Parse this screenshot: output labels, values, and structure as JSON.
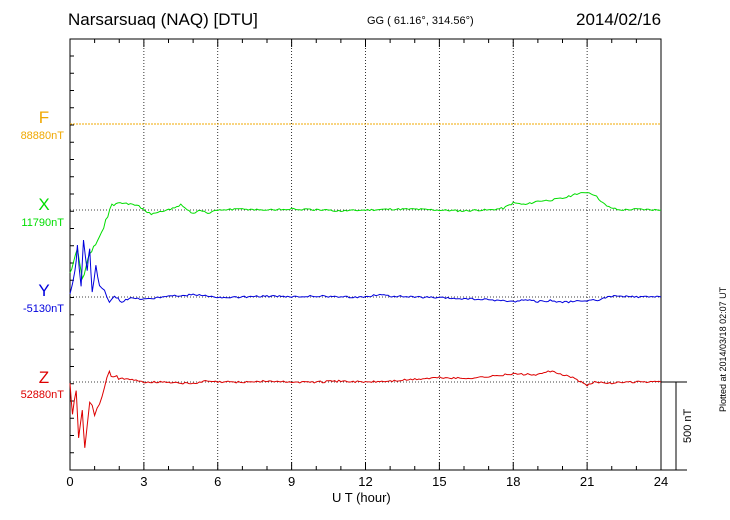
{
  "header": {
    "station": "Narsarsuaq (NAQ)  [DTU]",
    "coords": "GG ( 61.16°, 314.56°)",
    "date": "2014/02/16"
  },
  "plotted_note": "Plotted at 2014/03/18 02:07 UT",
  "colors": {
    "F": "#f0a800",
    "X": "#00dd00",
    "Y": "#0000dd",
    "Z": "#dd0000"
  },
  "chart_data": {
    "type": "line",
    "xlabel": "U T (hour)",
    "xlim": [
      0,
      24
    ],
    "x_ticks": [
      "0",
      "3",
      "6",
      "9",
      "12",
      "15",
      "18",
      "21",
      "24"
    ],
    "scale_bar": "500 nT",
    "grid": "vertical dotted at every 3 h",
    "series": [
      {
        "name": "F",
        "baseline": "88880nT",
        "values": []
      },
      {
        "name": "X",
        "baseline": "11790nT",
        "x": [
          0,
          0.3,
          0.5,
          0.8,
          1.2,
          1.7,
          2.2,
          2.8,
          3.3,
          4,
          4.5,
          5,
          5.3,
          5.6,
          6,
          7,
          8,
          9,
          10,
          11,
          12,
          13,
          14,
          15,
          16,
          16.5,
          17,
          17.6,
          18,
          18.5,
          19,
          19.5,
          20,
          20.5,
          21,
          21.3,
          21.8,
          22.3,
          23,
          24
        ],
        "values": [
          -350,
          -200,
          -380,
          -250,
          -150,
          30,
          40,
          20,
          -25,
          0,
          30,
          -20,
          0,
          -20,
          0,
          5,
          0,
          5,
          0,
          -5,
          0,
          5,
          5,
          0,
          -5,
          0,
          0,
          10,
          40,
          30,
          50,
          55,
          65,
          85,
          100,
          85,
          20,
          0,
          5,
          0
        ]
      },
      {
        "name": "Y",
        "baseline": "-5130nT",
        "x": [
          0,
          0.2,
          0.3,
          0.45,
          0.55,
          0.7,
          0.8,
          0.9,
          1.05,
          1.2,
          1.4,
          1.6,
          1.8,
          2.1,
          2.5,
          3,
          3.5,
          4,
          4.5,
          5,
          5.5,
          6,
          7,
          8,
          9,
          10,
          11,
          12,
          12.5,
          13,
          14,
          15,
          16,
          17,
          18,
          18.5,
          19,
          19.5,
          20,
          20.5,
          21,
          21.5,
          22,
          23,
          24
        ],
        "values": [
          20,
          150,
          280,
          50,
          320,
          150,
          270,
          30,
          180,
          60,
          30,
          -20,
          0,
          -25,
          -5,
          -10,
          -5,
          10,
          5,
          15,
          10,
          -5,
          0,
          5,
          0,
          5,
          0,
          0,
          15,
          5,
          0,
          -5,
          -10,
          -15,
          -25,
          -15,
          -25,
          -20,
          -30,
          -25,
          -20,
          -15,
          5,
          0,
          0
        ]
      },
      {
        "name": "Z",
        "baseline": "52880nT",
        "x": [
          0,
          0.1,
          0.25,
          0.35,
          0.5,
          0.6,
          0.8,
          1,
          1.2,
          1.4,
          1.6,
          1.9,
          2.2,
          2.6,
          3,
          4,
          5,
          5.5,
          6,
          7,
          8,
          9,
          10,
          11,
          12,
          13,
          14,
          15,
          16,
          17,
          18,
          19,
          19.5,
          20,
          20.5,
          21,
          21.3,
          22,
          23,
          24
        ],
        "values": [
          0,
          -180,
          -50,
          -300,
          -150,
          -380,
          -100,
          -180,
          -120,
          -30,
          50,
          30,
          15,
          10,
          0,
          0,
          -10,
          5,
          0,
          0,
          5,
          0,
          0,
          5,
          0,
          5,
          15,
          25,
          20,
          30,
          45,
          40,
          60,
          40,
          20,
          -20,
          0,
          -5,
          0,
          0
        ]
      }
    ]
  }
}
